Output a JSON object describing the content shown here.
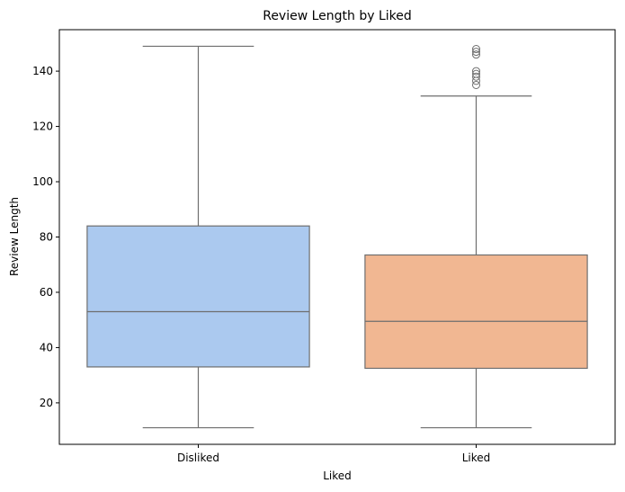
{
  "chart_data": {
    "type": "box",
    "title": "Review Length by Liked",
    "xlabel": "Liked",
    "ylabel": "Review Length",
    "ylim": [
      5,
      155
    ],
    "yticks": [
      20,
      40,
      60,
      80,
      100,
      120,
      140
    ],
    "grid": false,
    "categories": [
      "Disliked",
      "Liked"
    ],
    "boxes": [
      {
        "category": "Disliked",
        "color": "#abc9ef",
        "whisker_low": 11,
        "q1": 33,
        "median": 53,
        "q3": 84,
        "whisker_high": 149,
        "outliers": []
      },
      {
        "category": "Liked",
        "color": "#f1b792",
        "whisker_low": 11,
        "q1": 32.5,
        "median": 49.5,
        "q3": 73.5,
        "whisker_high": 131,
        "outliers": [
          135,
          136.5,
          138,
          139,
          140,
          146,
          147,
          148
        ]
      }
    ],
    "line_color": "#6e6e6e"
  }
}
